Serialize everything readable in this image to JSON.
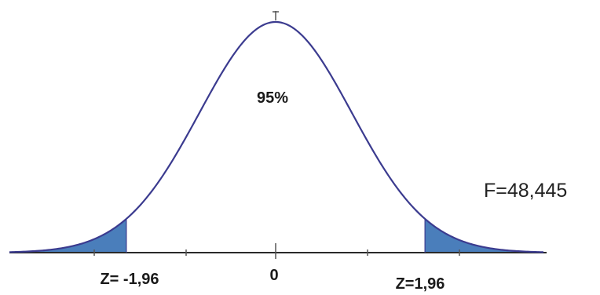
{
  "diagram": {
    "center_percent_label": "95%",
    "stat_label": "F=48,445",
    "mean_label": "0",
    "left_critical_label": "Z= -1,96",
    "right_critical_label": "Z=1,96",
    "critical_z": 1.96,
    "colors": {
      "curve": "#3b3b8f",
      "tail_fill": "#4a7ebb",
      "axis": "#2a2a2a"
    }
  }
}
